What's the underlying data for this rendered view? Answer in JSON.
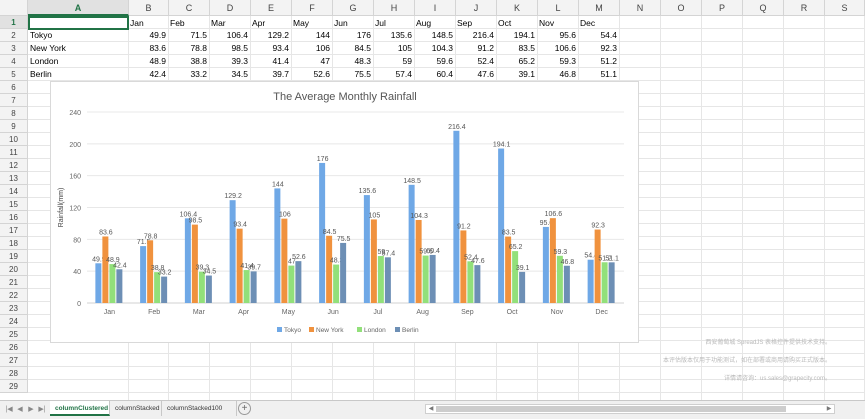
{
  "spreadsheet": {
    "columns": [
      "A",
      "B",
      "C",
      "D",
      "E",
      "F",
      "G",
      "H",
      "I",
      "J",
      "K",
      "L",
      "M",
      "N",
      "O",
      "P",
      "Q",
      "R",
      "S"
    ],
    "selected_column": "A",
    "selected_row": "1",
    "rows": [
      "1",
      "2",
      "3",
      "4",
      "5",
      "6",
      "7",
      "8",
      "9",
      "10",
      "11",
      "12",
      "13",
      "14",
      "15",
      "16",
      "17",
      "18",
      "19",
      "20",
      "21",
      "22",
      "23",
      "24",
      "25",
      "26",
      "27",
      "28",
      "29"
    ],
    "header_months": [
      "Jan",
      "Feb",
      "Mar",
      "Apr",
      "May",
      "Jun",
      "Jul",
      "Aug",
      "Sep",
      "Oct",
      "Nov",
      "Dec"
    ],
    "data_rows": [
      {
        "city": "Tokyo",
        "values": [
          "49.9",
          "71.5",
          "106.4",
          "129.2",
          "144",
          "176",
          "135.6",
          "148.5",
          "216.4",
          "194.1",
          "95.6",
          "54.4"
        ]
      },
      {
        "city": "New York",
        "values": [
          "83.6",
          "78.8",
          "98.5",
          "93.4",
          "106",
          "84.5",
          "105",
          "104.3",
          "91.2",
          "83.5",
          "106.6",
          "92.3"
        ]
      },
      {
        "city": "London",
        "values": [
          "48.9",
          "38.8",
          "39.3",
          "41.4",
          "47",
          "48.3",
          "59",
          "59.6",
          "52.4",
          "65.2",
          "59.3",
          "51.2"
        ]
      },
      {
        "city": "Berlin",
        "values": [
          "42.4",
          "33.2",
          "34.5",
          "39.7",
          "52.6",
          "75.5",
          "57.4",
          "60.4",
          "47.6",
          "39.1",
          "46.8",
          "51.1"
        ]
      }
    ]
  },
  "chart_data": {
    "type": "bar",
    "title": "The Average Monthly Rainfall",
    "xlabel": "",
    "ylabel": "Rainfall(mm)",
    "ylim": [
      0,
      240
    ],
    "yticks": [
      "0",
      "40",
      "80",
      "120",
      "160",
      "200",
      "240"
    ],
    "grid": true,
    "legend_position": "bottom",
    "categories": [
      "Jan",
      "Feb",
      "Mar",
      "Apr",
      "May",
      "Jun",
      "Jul",
      "Aug",
      "Sep",
      "Oct",
      "Nov",
      "Dec"
    ],
    "series": [
      {
        "name": "Tokyo",
        "color": "#6fa8e6",
        "values": [
          49.9,
          71.5,
          106.4,
          129.2,
          144,
          176,
          135.6,
          148.5,
          216.4,
          194.1,
          95.6,
          54.4
        ]
      },
      {
        "name": "New York",
        "color": "#f0923e",
        "values": [
          83.6,
          78.8,
          98.5,
          93.4,
          106,
          84.5,
          105,
          104.3,
          91.2,
          83.5,
          106.6,
          92.3
        ]
      },
      {
        "name": "London",
        "color": "#92e07a",
        "values": [
          48.9,
          38.8,
          39.3,
          41.4,
          47,
          48.3,
          59,
          59.6,
          52.4,
          65.2,
          59.3,
          51.2
        ]
      },
      {
        "name": "Berlin",
        "color": "#6d8fb5",
        "values": [
          42.4,
          33.2,
          34.5,
          39.7,
          52.6,
          75.5,
          57.4,
          60.4,
          47.6,
          39.1,
          46.8,
          51.1
        ]
      }
    ]
  },
  "watermark": {
    "line1": "西安葡萄城 SpreadJS 表格控件提供技术支持。",
    "line2": "本评估版本仅用于功能测试，如在部署或商用请购买正式版本。",
    "line3": "详情请咨询：us.sales@grapecity.com。"
  },
  "sheet_tabs": [
    "columnClustered",
    "columnStacked",
    "columnStacked100"
  ],
  "active_tab": "columnClustered",
  "icons": {
    "first": "first-sheet-icon",
    "prev": "prev-sheet-icon",
    "next": "next-sheet-icon",
    "last": "last-sheet-icon",
    "add": "add-sheet-icon"
  },
  "colors": {
    "accent": "#217346"
  }
}
